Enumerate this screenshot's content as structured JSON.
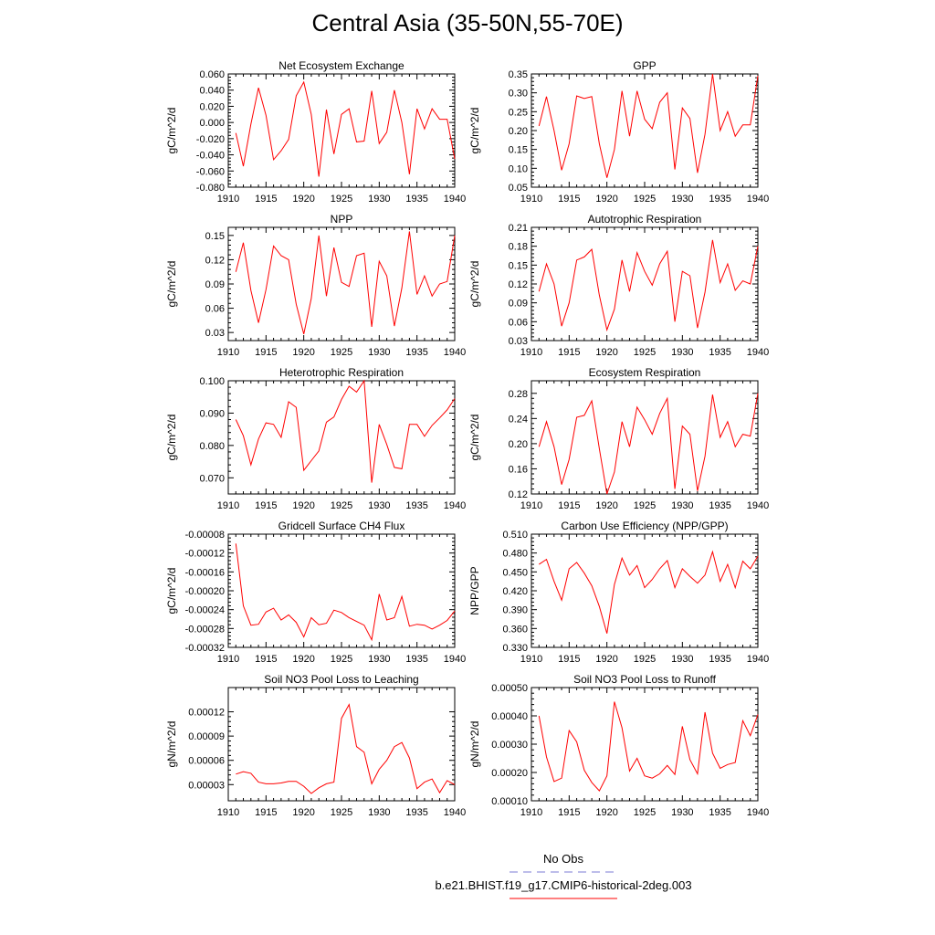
{
  "title": "Central Asia (35-50N,55-70E)",
  "line_color": "#ff0000",
  "legend": {
    "entries": [
      {
        "label": "No Obs",
        "color": "#7b7bd6",
        "style": "dashed"
      },
      {
        "label": "b.e21.BHIST.f19_g17.CMIP6-historical-2deg.003",
        "color": "#ff0000",
        "style": "solid"
      }
    ]
  },
  "chart_data": [
    {
      "type": "line",
      "title": "Net Ecosystem Exchange",
      "ylabel": "gC/m^2/d",
      "xlim": [
        1910,
        1940
      ],
      "ylim": [
        -0.08,
        0.06
      ],
      "xticks": [
        1910,
        1915,
        1920,
        1925,
        1930,
        1935,
        1940
      ],
      "yticks": [
        -0.08,
        -0.06,
        -0.04,
        -0.02,
        0.0,
        0.02,
        0.04,
        0.06
      ],
      "ytick_labels": [
        "-0.080",
        "-0.060",
        "-0.040",
        "-0.020",
        "0.000",
        "0.020",
        "0.040",
        "0.060"
      ],
      "x": [
        1911,
        1912,
        1913,
        1914,
        1915,
        1916,
        1917,
        1918,
        1919,
        1920,
        1921,
        1922,
        1923,
        1924,
        1925,
        1926,
        1927,
        1928,
        1929,
        1930,
        1931,
        1932,
        1933,
        1934,
        1935,
        1936,
        1937,
        1938,
        1939,
        1940
      ],
      "y": [
        -0.013,
        -0.054,
        -0.002,
        0.043,
        0.009,
        -0.046,
        -0.035,
        -0.021,
        0.033,
        0.05,
        0.01,
        -0.067,
        0.016,
        -0.039,
        0.01,
        0.017,
        -0.024,
        -0.023,
        0.039,
        -0.026,
        -0.012,
        0.04,
        0.0,
        -0.064,
        0.017,
        -0.008,
        0.017,
        0.004,
        0.004,
        -0.045
      ]
    },
    {
      "type": "line",
      "title": "GPP",
      "ylabel": "gC/m^2/d",
      "xlim": [
        1910,
        1940
      ],
      "ylim": [
        0.05,
        0.35
      ],
      "xticks": [
        1910,
        1915,
        1920,
        1925,
        1930,
        1935,
        1940
      ],
      "yticks": [
        0.05,
        0.1,
        0.15,
        0.2,
        0.25,
        0.3,
        0.35
      ],
      "ytick_labels": [
        "0.05",
        "0.10",
        "0.15",
        "0.20",
        "0.25",
        "0.30",
        "0.35"
      ],
      "x": [
        1911,
        1912,
        1913,
        1914,
        1915,
        1916,
        1917,
        1918,
        1919,
        1920,
        1921,
        1922,
        1923,
        1924,
        1925,
        1926,
        1927,
        1928,
        1929,
        1930,
        1931,
        1932,
        1933,
        1934,
        1935,
        1936,
        1937,
        1938,
        1939,
        1940
      ],
      "y": [
        0.212,
        0.29,
        0.2,
        0.095,
        0.165,
        0.292,
        0.285,
        0.29,
        0.165,
        0.075,
        0.15,
        0.305,
        0.185,
        0.305,
        0.23,
        0.205,
        0.275,
        0.3,
        0.097,
        0.26,
        0.232,
        0.088,
        0.19,
        0.35,
        0.2,
        0.25,
        0.185,
        0.215,
        0.215,
        0.345
      ]
    },
    {
      "type": "line",
      "title": "NPP",
      "ylabel": "gC/m^2/d",
      "xlim": [
        1910,
        1940
      ],
      "ylim": [
        0.02,
        0.16
      ],
      "xticks": [
        1910,
        1915,
        1920,
        1925,
        1930,
        1935,
        1940
      ],
      "yticks": [
        0.03,
        0.06,
        0.09,
        0.12,
        0.15
      ],
      "ytick_labels": [
        "0.03",
        "0.06",
        "0.09",
        "0.12",
        "0.15"
      ],
      "x": [
        1911,
        1912,
        1913,
        1914,
        1915,
        1916,
        1917,
        1918,
        1919,
        1920,
        1921,
        1922,
        1923,
        1924,
        1925,
        1926,
        1927,
        1928,
        1929,
        1930,
        1931,
        1932,
        1933,
        1934,
        1935,
        1936,
        1937,
        1938,
        1939,
        1940
      ],
      "y": [
        0.105,
        0.141,
        0.082,
        0.042,
        0.083,
        0.137,
        0.125,
        0.12,
        0.065,
        0.028,
        0.072,
        0.15,
        0.075,
        0.135,
        0.092,
        0.087,
        0.125,
        0.128,
        0.037,
        0.118,
        0.1,
        0.038,
        0.085,
        0.155,
        0.077,
        0.1,
        0.075,
        0.09,
        0.093,
        0.15
      ]
    },
    {
      "type": "line",
      "title": "Autotrophic Respiration",
      "ylabel": "gC/m^2/d",
      "xlim": [
        1910,
        1940
      ],
      "ylim": [
        0.03,
        0.21
      ],
      "xticks": [
        1910,
        1915,
        1920,
        1925,
        1930,
        1935,
        1940
      ],
      "yticks": [
        0.03,
        0.06,
        0.09,
        0.12,
        0.15,
        0.18,
        0.21
      ],
      "ytick_labels": [
        "0.03",
        "0.06",
        "0.09",
        "0.12",
        "0.15",
        "0.18",
        "0.21"
      ],
      "x": [
        1911,
        1912,
        1913,
        1914,
        1915,
        1916,
        1917,
        1918,
        1919,
        1920,
        1921,
        1922,
        1923,
        1924,
        1925,
        1926,
        1927,
        1928,
        1929,
        1930,
        1931,
        1932,
        1933,
        1934,
        1935,
        1936,
        1937,
        1938,
        1939,
        1940
      ],
      "y": [
        0.108,
        0.152,
        0.12,
        0.053,
        0.09,
        0.158,
        0.163,
        0.175,
        0.102,
        0.047,
        0.08,
        0.158,
        0.108,
        0.17,
        0.14,
        0.118,
        0.152,
        0.172,
        0.06,
        0.14,
        0.133,
        0.05,
        0.107,
        0.19,
        0.122,
        0.152,
        0.11,
        0.125,
        0.12,
        0.18
      ]
    },
    {
      "type": "line",
      "title": "Heterotrophic Respiration",
      "ylabel": "gC/m^2/d",
      "xlim": [
        1910,
        1940
      ],
      "ylim": [
        0.065,
        0.1
      ],
      "xticks": [
        1910,
        1915,
        1920,
        1925,
        1930,
        1935,
        1940
      ],
      "yticks": [
        0.07,
        0.08,
        0.09,
        0.1
      ],
      "ytick_labels": [
        "0.070",
        "0.080",
        "0.090",
        "0.100"
      ],
      "x": [
        1911,
        1912,
        1913,
        1914,
        1915,
        1916,
        1917,
        1918,
        1919,
        1920,
        1921,
        1922,
        1923,
        1924,
        1925,
        1926,
        1927,
        1928,
        1929,
        1930,
        1931,
        1932,
        1933,
        1934,
        1935,
        1936,
        1937,
        1938,
        1939,
        1940
      ],
      "y": [
        0.088,
        0.083,
        0.074,
        0.082,
        0.087,
        0.0865,
        0.0825,
        0.0935,
        0.0918,
        0.0723,
        0.0753,
        0.0783,
        0.0872,
        0.0888,
        0.0942,
        0.0983,
        0.0965,
        0.1,
        0.0685,
        0.0865,
        0.0803,
        0.0732,
        0.0728,
        0.0865,
        0.0865,
        0.0828,
        0.0862,
        0.0885,
        0.091,
        0.0945
      ]
    },
    {
      "type": "line",
      "title": "Ecosystem Respiration",
      "ylabel": "gC/m^2/d",
      "xlim": [
        1910,
        1940
      ],
      "ylim": [
        0.12,
        0.3
      ],
      "xticks": [
        1910,
        1915,
        1920,
        1925,
        1930,
        1935,
        1940
      ],
      "yticks": [
        0.12,
        0.16,
        0.2,
        0.24,
        0.28
      ],
      "ytick_labels": [
        "0.12",
        "0.16",
        "0.20",
        "0.24",
        "0.28"
      ],
      "x": [
        1911,
        1912,
        1913,
        1914,
        1915,
        1916,
        1917,
        1918,
        1919,
        1920,
        1921,
        1922,
        1923,
        1924,
        1925,
        1926,
        1927,
        1928,
        1929,
        1930,
        1931,
        1932,
        1933,
        1934,
        1935,
        1936,
        1937,
        1938,
        1939,
        1940
      ],
      "y": [
        0.195,
        0.235,
        0.195,
        0.135,
        0.175,
        0.242,
        0.245,
        0.268,
        0.192,
        0.12,
        0.155,
        0.235,
        0.195,
        0.258,
        0.238,
        0.215,
        0.248,
        0.272,
        0.128,
        0.228,
        0.215,
        0.125,
        0.18,
        0.278,
        0.21,
        0.235,
        0.195,
        0.215,
        0.212,
        0.28
      ]
    },
    {
      "type": "line",
      "title": "Gridcell Surface CH4 Flux",
      "ylabel": "gC/m^2/d",
      "xlim": [
        1910,
        1940
      ],
      "ylim": [
        -0.00032,
        -8e-05
      ],
      "xticks": [
        1910,
        1915,
        1920,
        1925,
        1930,
        1935,
        1940
      ],
      "yticks": [
        -0.00032,
        -0.00028,
        -0.00024,
        -0.0002,
        -0.00016,
        -0.00012,
        -8e-05
      ],
      "ytick_labels": [
        "-0.00032",
        "-0.00028",
        "-0.00024",
        "-0.00020",
        "-0.00016",
        "-0.00012",
        "-0.00008"
      ],
      "x": [
        1911,
        1912,
        1913,
        1914,
        1915,
        1916,
        1917,
        1918,
        1919,
        1920,
        1921,
        1922,
        1923,
        1924,
        1925,
        1926,
        1927,
        1928,
        1929,
        1930,
        1931,
        1932,
        1933,
        1934,
        1935,
        1936,
        1937,
        1938,
        1939,
        1940
      ],
      "y": [
        -0.0001,
        -0.000232,
        -0.000273,
        -0.000271,
        -0.000245,
        -0.000237,
        -0.000262,
        -0.000251,
        -0.000267,
        -0.000298,
        -0.000257,
        -0.000272,
        -0.000269,
        -0.000241,
        -0.000246,
        -0.000257,
        -0.000265,
        -0.000273,
        -0.000304,
        -0.000207,
        -0.000262,
        -0.000257,
        -0.000212,
        -0.000275,
        -0.000271,
        -0.000273,
        -0.000281,
        -0.000273,
        -0.000263,
        -0.000243
      ]
    },
    {
      "type": "line",
      "title": "Carbon Use Efficiency (NPP/GPP)",
      "ylabel": "NPP/GPP",
      "xlim": [
        1910,
        1940
      ],
      "ylim": [
        0.33,
        0.51
      ],
      "xticks": [
        1910,
        1915,
        1920,
        1925,
        1930,
        1935,
        1940
      ],
      "yticks": [
        0.33,
        0.36,
        0.39,
        0.42,
        0.45,
        0.48,
        0.51
      ],
      "ytick_labels": [
        "0.330",
        "0.360",
        "0.390",
        "0.420",
        "0.450",
        "0.480",
        "0.510"
      ],
      "x": [
        1911,
        1912,
        1913,
        1914,
        1915,
        1916,
        1917,
        1918,
        1919,
        1920,
        1921,
        1922,
        1923,
        1924,
        1925,
        1926,
        1927,
        1928,
        1929,
        1930,
        1931,
        1932,
        1933,
        1934,
        1935,
        1936,
        1937,
        1938,
        1939,
        1940
      ],
      "y": [
        0.462,
        0.47,
        0.435,
        0.405,
        0.455,
        0.465,
        0.448,
        0.428,
        0.395,
        0.352,
        0.43,
        0.472,
        0.445,
        0.46,
        0.425,
        0.438,
        0.455,
        0.468,
        0.425,
        0.455,
        0.443,
        0.432,
        0.445,
        0.482,
        0.435,
        0.462,
        0.425,
        0.467,
        0.455,
        0.475
      ]
    },
    {
      "type": "line",
      "title": "Soil NO3 Pool Loss to Leaching",
      "ylabel": "gN/m^2/d",
      "xlim": [
        1910,
        1940
      ],
      "ylim": [
        1e-05,
        0.00015
      ],
      "xticks": [
        1910,
        1915,
        1920,
        1925,
        1930,
        1935,
        1940
      ],
      "yticks": [
        3e-05,
        6e-05,
        9e-05,
        0.00012
      ],
      "ytick_labels": [
        "0.00003",
        "0.00006",
        "0.00009",
        "0.00012"
      ],
      "x": [
        1911,
        1912,
        1913,
        1914,
        1915,
        1916,
        1917,
        1918,
        1919,
        1920,
        1921,
        1922,
        1923,
        1924,
        1925,
        1926,
        1927,
        1928,
        1929,
        1930,
        1931,
        1932,
        1933,
        1934,
        1935,
        1936,
        1937,
        1938,
        1939,
        1940
      ],
      "y": [
        4.3e-05,
        4.6e-05,
        4.4e-05,
        3.3e-05,
        3.1e-05,
        3.1e-05,
        3.2e-05,
        3.4e-05,
        3.4e-05,
        2.8e-05,
        1.9e-05,
        2.6e-05,
        3.1e-05,
        3.3e-05,
        0.000112,
        0.000129,
        7.7e-05,
        7e-05,
        3.1e-05,
        4.9e-05,
        6e-05,
        7.7e-05,
        8.2e-05,
        6.3e-05,
        2.5e-05,
        3.3e-05,
        3.7e-05,
        2e-05,
        3.5e-05,
        3e-05
      ]
    },
    {
      "type": "line",
      "title": "Soil NO3 Pool Loss to Runoff",
      "ylabel": "gN/m^2/d",
      "xlim": [
        1910,
        1940
      ],
      "ylim": [
        0.0001,
        0.0005
      ],
      "xticks": [
        1910,
        1915,
        1920,
        1925,
        1930,
        1935,
        1940
      ],
      "yticks": [
        0.0001,
        0.0002,
        0.0003,
        0.0004,
        0.0005
      ],
      "ytick_labels": [
        "0.00010",
        "0.00020",
        "0.00030",
        "0.00040",
        "0.00050"
      ],
      "x": [
        1911,
        1912,
        1913,
        1914,
        1915,
        1916,
        1917,
        1918,
        1919,
        1920,
        1921,
        1922,
        1923,
        1924,
        1925,
        1926,
        1927,
        1928,
        1929,
        1930,
        1931,
        1932,
        1933,
        1934,
        1935,
        1936,
        1937,
        1938,
        1939,
        1940
      ],
      "y": [
        0.0004,
        0.000255,
        0.000168,
        0.00018,
        0.000348,
        0.000308,
        0.000208,
        0.000165,
        0.000135,
        0.000188,
        0.00045,
        0.000358,
        0.000205,
        0.00025,
        0.000188,
        0.00018,
        0.000195,
        0.000225,
        0.000193,
        0.000363,
        0.000245,
        0.000195,
        0.000413,
        0.000268,
        0.000215,
        0.000228,
        0.000235,
        0.000383,
        0.00033,
        0.000405
      ]
    }
  ]
}
